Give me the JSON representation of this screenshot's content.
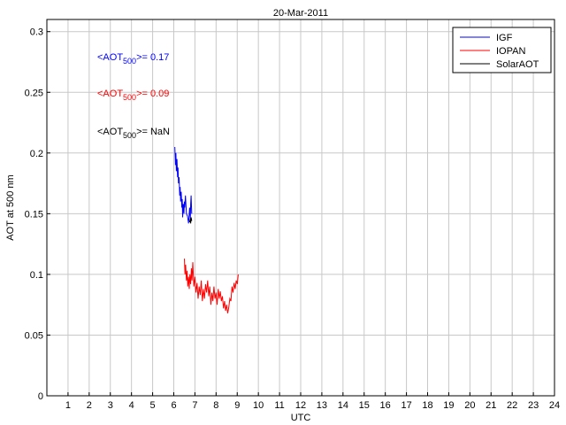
{
  "chart_data": {
    "type": "line",
    "title": "20-Mar-2011",
    "xlabel": "UTC",
    "ylabel": "AOT at 500 nm",
    "xlim": [
      0,
      24
    ],
    "ylim": [
      0,
      0.31
    ],
    "grid": true,
    "legend_position": "top-right",
    "x_ticks": [
      1,
      2,
      3,
      4,
      5,
      6,
      7,
      8,
      9,
      10,
      11,
      12,
      13,
      14,
      15,
      16,
      17,
      18,
      19,
      20,
      21,
      22,
      23,
      24
    ],
    "y_ticks": [
      0,
      0.05,
      0.1,
      0.15,
      0.2,
      0.25,
      0.3
    ],
    "y_tick_labels": [
      "0",
      "0.05",
      "0.1",
      "0.15",
      "0.2",
      "0.25",
      "0.3"
    ],
    "series": [
      {
        "name": "IGF",
        "color": "#0000ff",
        "x": [
          6.05,
          6.08,
          6.1,
          6.12,
          6.15,
          6.18,
          6.2,
          6.22,
          6.25,
          6.28,
          6.3,
          6.32,
          6.35,
          6.38,
          6.4,
          6.42,
          6.45,
          6.48,
          6.5,
          6.52,
          6.55,
          6.6,
          6.65,
          6.7,
          6.75,
          6.78,
          6.8,
          6.82,
          6.85
        ],
        "y": [
          0.205,
          0.19,
          0.2,
          0.185,
          0.195,
          0.18,
          0.188,
          0.175,
          0.18,
          0.165,
          0.172,
          0.16,
          0.168,
          0.155,
          0.162,
          0.147,
          0.158,
          0.15,
          0.16,
          0.155,
          0.165,
          0.15,
          0.148,
          0.142,
          0.155,
          0.145,
          0.158,
          0.165,
          0.15
        ]
      },
      {
        "name": "IOPAN",
        "color": "#ff0000",
        "x": [
          6.5,
          6.53,
          6.56,
          6.6,
          6.63,
          6.66,
          6.7,
          6.73,
          6.76,
          6.8,
          6.83,
          6.86,
          6.9,
          6.95,
          7.0,
          7.05,
          7.1,
          7.15,
          7.2,
          7.25,
          7.3,
          7.35,
          7.4,
          7.45,
          7.5,
          7.55,
          7.6,
          7.65,
          7.7,
          7.75,
          7.8,
          7.85,
          7.9,
          7.95,
          8.0,
          8.05,
          8.1,
          8.15,
          8.2,
          8.25,
          8.3,
          8.35,
          8.4,
          8.45,
          8.5,
          8.55,
          8.6,
          8.65,
          8.7,
          8.75,
          8.8,
          8.85,
          8.9,
          8.95,
          9.0,
          9.05
        ],
        "y": [
          0.113,
          0.1,
          0.108,
          0.095,
          0.103,
          0.09,
          0.098,
          0.088,
          0.1,
          0.092,
          0.105,
          0.095,
          0.11,
          0.09,
          0.098,
          0.085,
          0.093,
          0.08,
          0.09,
          0.083,
          0.095,
          0.078,
          0.088,
          0.08,
          0.092,
          0.085,
          0.095,
          0.082,
          0.09,
          0.075,
          0.085,
          0.078,
          0.09,
          0.08,
          0.085,
          0.075,
          0.088,
          0.08,
          0.086,
          0.078,
          0.082,
          0.072,
          0.078,
          0.07,
          0.075,
          0.068,
          0.073,
          0.08,
          0.078,
          0.09,
          0.085,
          0.093,
          0.088,
          0.095,
          0.092,
          0.1
        ]
      },
      {
        "name": "SolarAOT",
        "color": "#000000",
        "x": [
          6.75,
          6.78,
          6.8,
          6.82,
          6.85
        ],
        "y": [
          0.143,
          0.146,
          0.142,
          0.147,
          0.144
        ]
      }
    ],
    "annotations": [
      {
        "prefix": "<AOT",
        "subscript": "500",
        "suffix": ">= 0.17",
        "color": "#0000ff"
      },
      {
        "prefix": "<AOT",
        "subscript": "500",
        "suffix": ">= 0.09",
        "color": "#ff0000"
      },
      {
        "prefix": "<AOT",
        "subscript": "500",
        "suffix": ">=  NaN",
        "color": "#000000"
      }
    ]
  }
}
